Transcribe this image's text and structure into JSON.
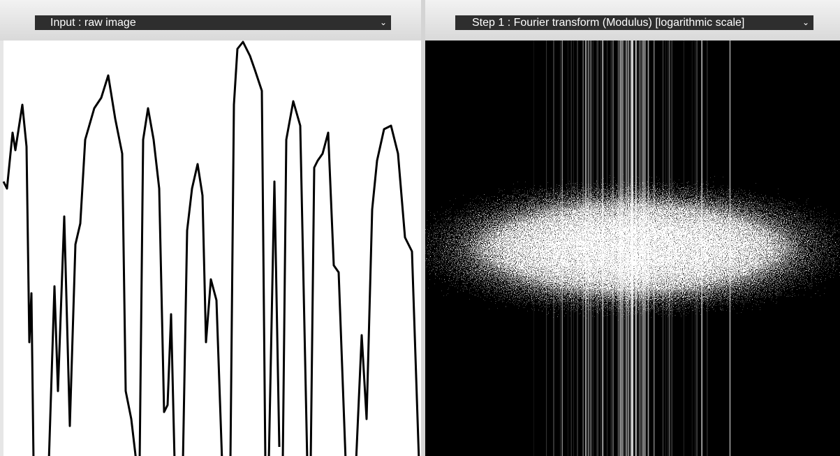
{
  "panels": [
    {
      "select": "Input : raw image"
    },
    {
      "select": "Step 1 : Fourier transform (Modulus) [logarithmic scale]"
    }
  ]
}
